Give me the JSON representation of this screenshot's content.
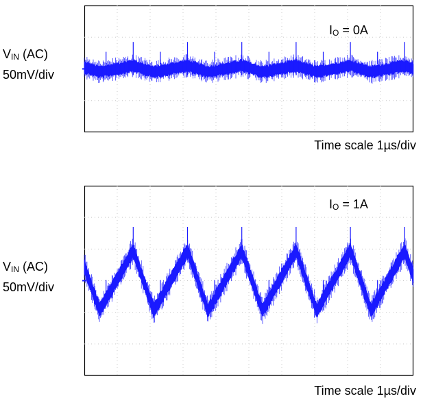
{
  "chart_data": [
    {
      "type": "line",
      "ylabel_main": "V",
      "ylabel_sub": "IN",
      "ylabel_suffix": " (AC)",
      "yscale": "50mV/div",
      "legend_main": "I",
      "legend_sub": "O",
      "legend_value": " = 0A",
      "xscale": "Time scale  1µs/div",
      "divisions_x": 10,
      "divisions_y": 4,
      "grid": true,
      "ripple_period_div": 1.65,
      "ripple_amplitude_div": 0.1,
      "noise_band_div": 0.25,
      "center_div": 2.0,
      "spike_period_div": 1.65,
      "trace_color": "#1a1aff"
    },
    {
      "type": "line",
      "ylabel_main": "V",
      "ylabel_sub": "IN",
      "ylabel_suffix": " (AC)",
      "yscale": "50mV/div",
      "legend_main": "I",
      "legend_sub": "O",
      "legend_value": " = 1A",
      "xscale": "Time scale  1µs/div",
      "divisions_x": 10,
      "divisions_y": 6,
      "grid": true,
      "ripple_period_div": 1.65,
      "ripple_amplitude_div": 0.95,
      "noise_band_div": 0.3,
      "center_div": 3.0,
      "spike_period_div": 1.65,
      "trace_color": "#1a1aff"
    }
  ]
}
